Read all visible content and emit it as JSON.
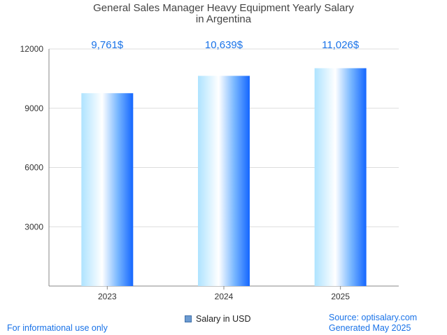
{
  "chart_data": {
    "type": "bar",
    "title_line1": "General Sales Manager Heavy Equipment Yearly Salary",
    "title_line2": "in Argentina",
    "categories": [
      "2023",
      "2024",
      "2025"
    ],
    "values": [
      9761,
      10639,
      11026
    ],
    "value_labels": [
      "9,761$",
      "10,639$",
      "11,026$"
    ],
    "ylim": [
      0,
      12000
    ],
    "yticks": [
      3000,
      6000,
      9000,
      12000
    ],
    "grid": true,
    "legend": {
      "label": "Salary in USD",
      "placement": "bottom-center"
    },
    "colors": {
      "bar_light": "#bfe8ff",
      "bar_mid": "#ffffff",
      "bar_dark": "#1a6cff",
      "value_label": "#1a73e8",
      "grid": "#dddddd",
      "axis": "#888888"
    }
  },
  "footer": {
    "left": "For informational use only",
    "source": "Source: optisalary.com",
    "generated": "Generated May 2025"
  }
}
